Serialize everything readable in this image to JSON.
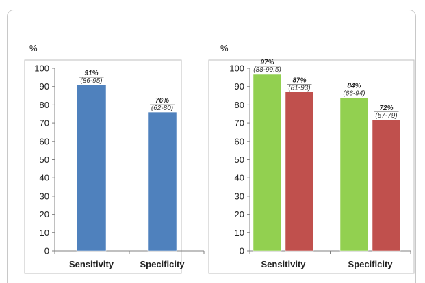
{
  "chart_data": [
    {
      "type": "bar",
      "ylabel": "%",
      "ylim": [
        0,
        100
      ],
      "yticks": [
        0,
        10,
        20,
        30,
        40,
        50,
        60,
        70,
        80,
        90,
        100
      ],
      "categories": [
        "Sensitivity",
        "Specificity"
      ],
      "grid": false,
      "series": [
        {
          "color": "#4f81bd",
          "values": [
            91,
            76
          ],
          "value_labels": [
            "91%",
            "76%"
          ],
          "ci_labels": [
            "(86-95)",
            "(62-80)"
          ]
        }
      ]
    },
    {
      "type": "bar",
      "ylabel": "%",
      "ylim": [
        0,
        100
      ],
      "yticks": [
        0,
        10,
        20,
        30,
        40,
        50,
        60,
        70,
        80,
        90,
        100
      ],
      "categories": [
        "Sensitivity",
        "Specificity"
      ],
      "grid": false,
      "series": [
        {
          "color": "#92d050",
          "values": [
            97,
            84
          ],
          "value_labels": [
            "97%",
            "84%"
          ],
          "ci_labels": [
            "(88-99.5)",
            "(66-94)"
          ]
        },
        {
          "color": "#c0504d",
          "values": [
            87,
            72
          ],
          "value_labels": [
            "87%",
            "72%"
          ],
          "ci_labels": [
            "(81-93)",
            "(57-79)"
          ]
        }
      ]
    }
  ]
}
